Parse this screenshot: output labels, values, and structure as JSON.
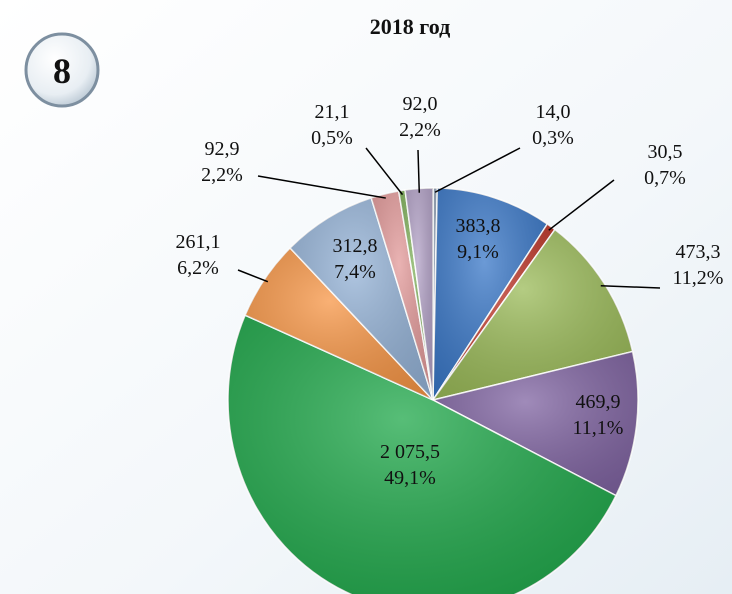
{
  "badge": "8",
  "chart_data": {
    "type": "pie",
    "title": "2018 год",
    "values": [
      14.0,
      383.8,
      30.5,
      473.3,
      469.9,
      2075.5,
      261.1,
      312.8,
      92.9,
      21.1,
      92.0
    ],
    "value_labels": [
      "14,0",
      "383,8",
      "30,5",
      "473,3",
      "469,9",
      "2 075,5",
      "261,1",
      "312,8",
      "92,9",
      "21,1",
      "92,0"
    ],
    "percents": [
      0.3,
      9.1,
      0.7,
      11.2,
      11.1,
      49.1,
      6.2,
      7.4,
      2.2,
      0.5,
      2.2
    ],
    "percent_labels": [
      "0,3%",
      "9,1%",
      "0,7%",
      "11,2%",
      "11,1%",
      "49,1%",
      "6,2%",
      "7,4%",
      "2,2%",
      "0,5%",
      "2,2%"
    ],
    "colors": [
      "#8a9bb0",
      "#3a78c8",
      "#c0392b",
      "#9bbb59",
      "#8064a2",
      "#1fa84a",
      "#f79646",
      "#95b3d7",
      "#e39a9a",
      "#7fb05a",
      "#b3a2c7"
    ]
  }
}
